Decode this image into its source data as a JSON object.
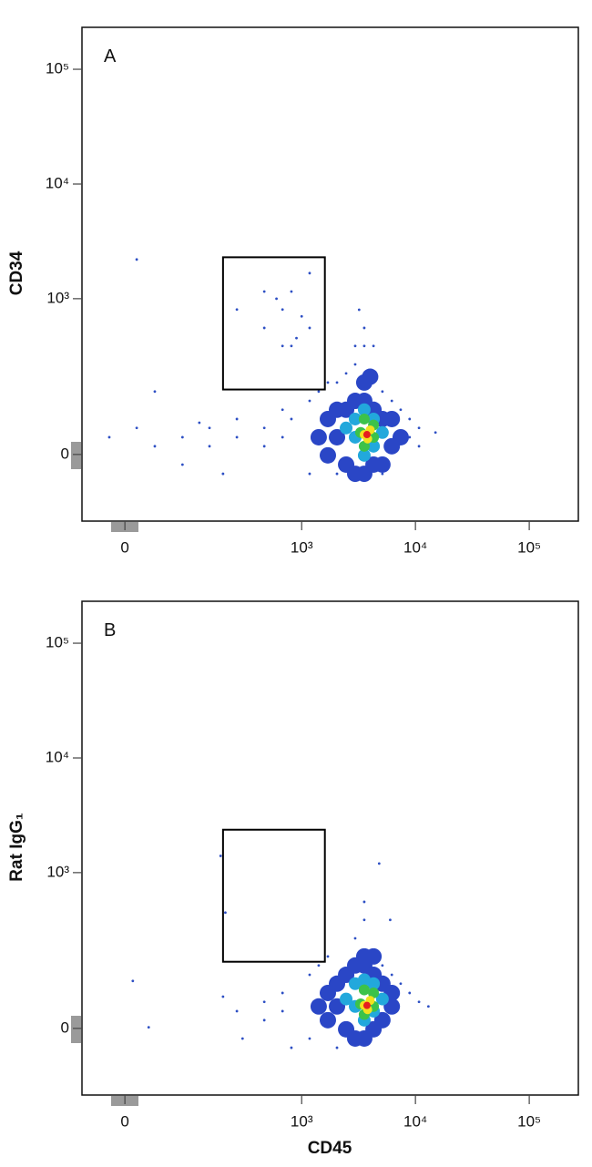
{
  "chart_data": [
    {
      "type": "scatter",
      "label": "A",
      "ylabel": "CD34",
      "xlim": [
        -55,
        270000
      ],
      "ylim": [
        -156,
        232000
      ],
      "xticks": [
        0,
        {
          "value": 1000,
          "label": "10³"
        },
        {
          "value": 10000,
          "label": "10⁴"
        },
        {
          "value": 100000,
          "label": "10⁵"
        }
      ],
      "yticks": [
        0,
        {
          "value": 1000,
          "label": "10³"
        },
        {
          "value": 10000,
          "label": "10⁴"
        },
        {
          "value": 100000,
          "label": "10⁵"
        }
      ],
      "gate": {
        "x": [
          200,
          1600
        ],
        "y": [
          150,
          2300
        ]
      },
      "series": [
        {
          "color": "#2d4fc4",
          "size": 1.4,
          "x": [
            -18,
            13.5,
            36,
            81,
            81,
            150,
            150,
            267,
            267,
            468,
            468,
            678,
            678,
            36,
            200,
            120,
            812,
            1175,
            1175,
            1412,
            1700,
            2045,
            2045,
            2460,
            2955,
            3550,
            4280,
            5125,
            6200,
            7420,
            8890,
            8890,
            10750,
            10750,
            468,
            678,
            812,
            678,
            1175,
            468,
            812,
            1175,
            267,
            1000,
            600,
            900,
            3550,
            3550,
            4280,
            2955,
            3200,
            13.5,
            5125,
            15000
          ],
          "y": [
            31,
            49,
            14.6,
            31,
            -18,
            49,
            14.6,
            31,
            68,
            49,
            14.6,
            31,
            90,
            143,
            -35,
            60,
            68,
            114,
            -35,
            143,
            176,
            -35,
            176,
            215,
            261,
            215,
            176,
            143,
            114,
            90,
            31,
            68,
            49,
            14.6,
            554,
            803,
            1155,
            383,
            554,
            1155,
            383,
            1672,
            803,
            700,
            1000,
            450,
            383,
            554,
            383,
            383,
            800,
            2200,
            -35,
            40
          ]
        },
        {
          "color": "#2a46c6",
          "size": 9,
          "x": [
            1412,
            1700,
            1700,
            2045,
            2045,
            2460,
            2460,
            2955,
            2955,
            3550,
            3550,
            4280,
            4280,
            5125,
            5125,
            6200,
            6200,
            7420,
            3550,
            4000
          ],
          "y": [
            31,
            -1.6,
            68,
            31,
            90,
            -18,
            90,
            -35,
            114,
            -35,
            114,
            -18,
            90,
            -18,
            68,
            14.6,
            68,
            31,
            176,
            200
          ]
        },
        {
          "color": "#22a8dc",
          "size": 7,
          "x": [
            2955,
            2955,
            3550,
            3550,
            4280,
            4280,
            5125,
            2460
          ],
          "y": [
            31,
            68,
            -1.6,
            90,
            14.6,
            68,
            40,
            49
          ]
        },
        {
          "color": "#3cc24a",
          "size": 6,
          "x": [
            3300,
            3550,
            4280,
            4280,
            3550
          ],
          "y": [
            40,
            14.6,
            31,
            55,
            68
          ]
        },
        {
          "color": "#f2e21e",
          "size": 5,
          "x": [
            3550,
            4000,
            3800
          ],
          "y": [
            36,
            45,
            28
          ]
        },
        {
          "color": "#e61e1e",
          "size": 4,
          "x": [
            3750
          ],
          "y": [
            36
          ]
        }
      ]
    },
    {
      "type": "scatter",
      "label": "B",
      "ylabel": "Rat IgG₁",
      "xlabel": "CD45",
      "xlim": [
        -55,
        270000
      ],
      "ylim": [
        -156,
        232000
      ],
      "xticks": [
        0,
        {
          "value": 1000,
          "label": "10³"
        },
        {
          "value": 10000,
          "label": "10⁴"
        },
        {
          "value": 100000,
          "label": "10⁵"
        }
      ],
      "yticks": [
        0,
        {
          "value": 1000,
          "label": "10³"
        },
        {
          "value": 10000,
          "label": "10⁴"
        },
        {
          "value": 100000,
          "label": "10⁵"
        }
      ],
      "gate": {
        "x": [
          200,
          1600
        ],
        "y": [
          156,
          2370
        ]
      },
      "series": [
        {
          "color": "#2d4fc4",
          "size": 1.4,
          "x": [
            200,
            267,
            300,
            468,
            468,
            678,
            678,
            812,
            1175,
            1175,
            1412,
            1700,
            2045,
            2955,
            5125,
            6200,
            7420,
            8890,
            10750,
            13000,
            190,
            210,
            9,
            28,
            3550,
            4800,
            6000,
            3550
          ],
          "y": [
            60,
            31,
            -18,
            49,
            14.6,
            31,
            68,
            -35,
            114,
            -18,
            143,
            176,
            -35,
            261,
            143,
            114,
            90,
            68,
            49,
            40,
            1400,
            445,
            97,
            2,
            554,
            1200,
            383,
            383
          ]
        },
        {
          "color": "#2a46c6",
          "size": 9,
          "x": [
            1412,
            1700,
            1700,
            2045,
            2045,
            2460,
            2460,
            2955,
            2955,
            3550,
            3550,
            4280,
            4280,
            5125,
            5125,
            6200,
            6200,
            3550,
            4280
          ],
          "y": [
            40,
            14.6,
            68,
            40,
            90,
            -1.6,
            114,
            -18,
            143,
            -18,
            143,
            -1.6,
            114,
            14.6,
            90,
            40,
            68,
            176,
            176
          ]
        },
        {
          "color": "#22a8dc",
          "size": 7,
          "x": [
            2955,
            2955,
            3550,
            3550,
            4280,
            4280,
            5125,
            2460
          ],
          "y": [
            40,
            90,
            14.6,
            100,
            31,
            90,
            55,
            55
          ]
        },
        {
          "color": "#3cc24a",
          "size": 6,
          "x": [
            3300,
            3550,
            4280,
            4280,
            3550
          ],
          "y": [
            45,
            25,
            40,
            68,
            75
          ]
        },
        {
          "color": "#f2e21e",
          "size": 5,
          "x": [
            3550,
            4000,
            3800
          ],
          "y": [
            42,
            52,
            34
          ]
        },
        {
          "color": "#e61e1e",
          "size": 4,
          "x": [
            3750
          ],
          "y": [
            42
          ]
        }
      ]
    }
  ]
}
